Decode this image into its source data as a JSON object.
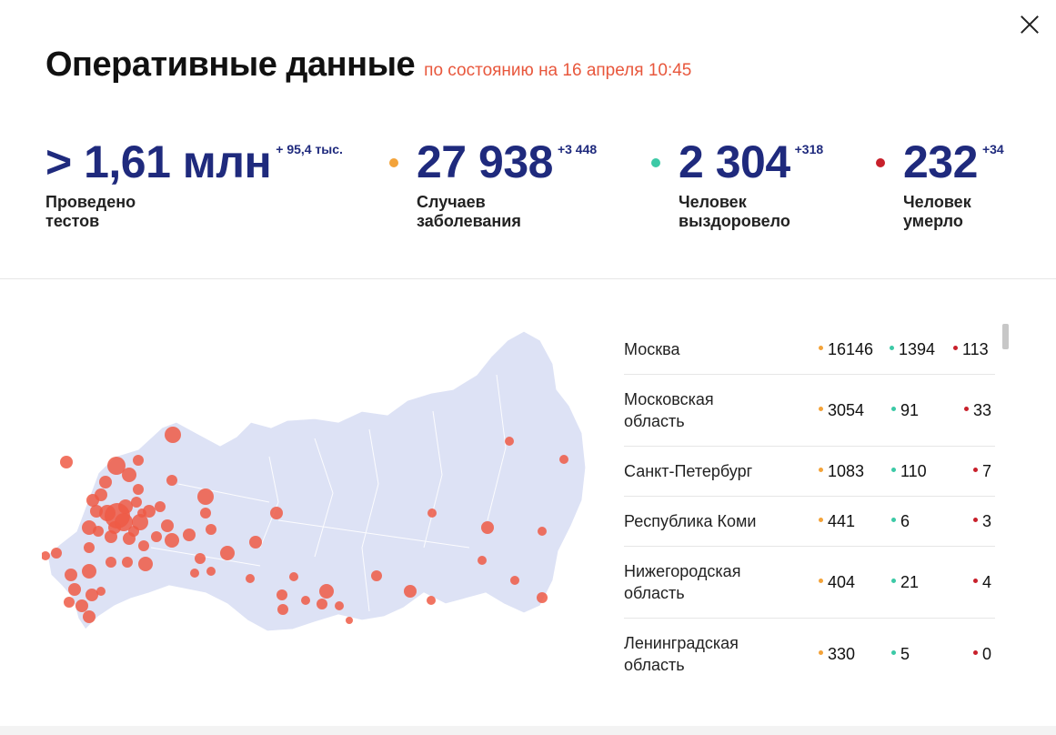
{
  "header": {
    "title": "Оперативные данные",
    "subtitle": "по состоянию на 16 апреля 10:45"
  },
  "stats": [
    {
      "value": "> 1,61 млн",
      "delta": "+ 95,4 тыс.",
      "label_line1": "Проведено",
      "label_line2": "тестов",
      "color": ""
    },
    {
      "value": "27 938",
      "delta": "+3 448",
      "label_line1": "Случаев",
      "label_line2": "заболевания",
      "color": "#f3a33a"
    },
    {
      "value": "2 304",
      "delta": "+318",
      "label_line1": "Человек",
      "label_line2": "выздоровело",
      "color": "#3cc9a6"
    },
    {
      "value": "232",
      "delta": "+34",
      "label_line1": "Человек",
      "label_line2": "умерло",
      "color": "#c8202b"
    }
  ],
  "regions": [
    {
      "name": "Москва",
      "cases": "16146",
      "recovered": "1394",
      "deaths": "113"
    },
    {
      "name": "Московская область",
      "cases": "3054",
      "recovered": "91",
      "deaths": "33"
    },
    {
      "name": "Санкт-Петербург",
      "cases": "1083",
      "recovered": "110",
      "deaths": "7"
    },
    {
      "name": "Республика Коми",
      "cases": "441",
      "recovered": "6",
      "deaths": "3"
    },
    {
      "name": "Нижегородская область",
      "cases": "404",
      "recovered": "21",
      "deaths": "4"
    },
    {
      "name": "Ленинградская область",
      "cases": "330",
      "recovered": "5",
      "deaths": "0"
    }
  ],
  "colors": {
    "accent": "#1f2a7d",
    "subtitle": "#e8573c",
    "cases": "#f3a33a",
    "recovered": "#3cc9a6",
    "deaths": "#c8202b",
    "map_fill": "#dde2f5",
    "bubble": "#ee5a45"
  },
  "icons": {
    "close": "close-icon",
    "map": "russia-map-icon"
  }
}
